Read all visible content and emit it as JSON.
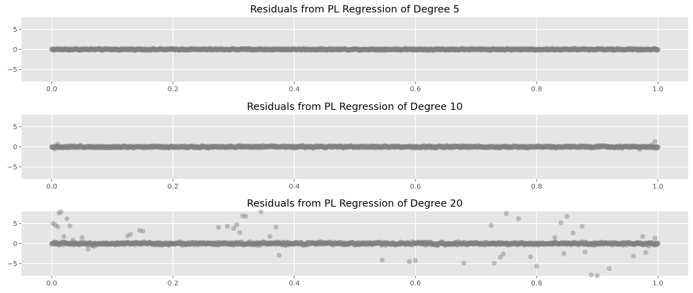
{
  "figure": {
    "background": "#ffffff",
    "axes_background": "#e5e5e5",
    "grid_color": "#ffffff",
    "tick_color": "#555555",
    "marker_color": "#808080"
  },
  "chart_data": [
    {
      "type": "scatter",
      "title": "Residuals from PL Regression of Degree 5",
      "xlabel": "",
      "ylabel": "",
      "xlim": [
        -0.05,
        1.05
      ],
      "ylim": [
        -8,
        8
      ],
      "xticks": [
        "0.0",
        "0.2",
        "0.4",
        "0.6",
        "0.8",
        "1.0"
      ],
      "yticks": [
        "5",
        "0",
        "−5"
      ],
      "xtick_values": [
        0,
        0.2,
        0.4,
        0.6,
        0.8,
        1.0
      ],
      "ytick_values": [
        5,
        0,
        -5
      ],
      "grid": true,
      "band": {
        "x_range": [
          0,
          1
        ],
        "y_spread": 0.25,
        "count": 700
      },
      "outliers": {
        "x": [],
        "y": []
      }
    },
    {
      "type": "scatter",
      "title": "Residuals from PL Regression of Degree 10",
      "xlabel": "",
      "ylabel": "",
      "xlim": [
        -0.05,
        1.05
      ],
      "ylim": [
        -8,
        8
      ],
      "xticks": [
        "0.0",
        "0.2",
        "0.4",
        "0.6",
        "0.8",
        "1.0"
      ],
      "yticks": [
        "5",
        "0",
        "−5"
      ],
      "xtick_values": [
        0,
        0.2,
        0.4,
        0.6,
        0.8,
        1.0
      ],
      "ytick_values": [
        5,
        0,
        -5
      ],
      "grid": true,
      "band": {
        "x_range": [
          0,
          1
        ],
        "y_spread": 0.3,
        "count": 700
      },
      "outliers": {
        "x": [
          0.01,
          0.97,
          0.995,
          0.998,
          0.005,
          0.99
        ],
        "y": [
          0.7,
          -0.6,
          1.3,
          -0.4,
          -0.5,
          0.5
        ]
      }
    },
    {
      "type": "scatter",
      "title": "Residuals from PL Regression of Degree 20",
      "xlabel": "",
      "ylabel": "",
      "xlim": [
        -0.05,
        1.05
      ],
      "ylim": [
        -8,
        8
      ],
      "xticks": [
        "0.0",
        "0.2",
        "0.4",
        "0.6",
        "0.8",
        "1.0"
      ],
      "yticks": [
        "5",
        "0",
        "−5"
      ],
      "xtick_values": [
        0,
        0.2,
        0.4,
        0.6,
        0.8,
        1.0
      ],
      "ytick_values": [
        5,
        0,
        -5
      ],
      "grid": true,
      "band": {
        "x_range": [
          0,
          1
        ],
        "y_spread": 0.45,
        "count": 700
      },
      "outliers": {
        "x": [
          0.002,
          0.006,
          0.012,
          0.01,
          0.015,
          0.02,
          0.025,
          0.03,
          0.035,
          0.05,
          0.06,
          0.07,
          0.125,
          0.13,
          0.145,
          0.15,
          0.275,
          0.29,
          0.3,
          0.305,
          0.31,
          0.315,
          0.345,
          0.36,
          0.375,
          0.37,
          0.32,
          0.545,
          0.59,
          0.6,
          0.68,
          0.725,
          0.73,
          0.74,
          0.75,
          0.745,
          0.77,
          0.79,
          0.8,
          0.83,
          0.84,
          0.845,
          0.85,
          0.86,
          0.875,
          0.88,
          0.89,
          0.9,
          0.92,
          0.96,
          0.975,
          0.98,
          0.995,
          0.985
        ],
        "y": [
          5.0,
          4.6,
          7.6,
          4.2,
          7.9,
          1.8,
          6.2,
          4.4,
          0.9,
          1.5,
          -1.4,
          -0.7,
          1.9,
          2.3,
          3.3,
          3.1,
          4.0,
          4.3,
          3.8,
          4.7,
          2.7,
          6.9,
          7.9,
          1.8,
          -2.9,
          4.1,
          6.8,
          -4.1,
          -4.5,
          -4.2,
          -4.8,
          4.5,
          -4.9,
          -3.4,
          7.5,
          -2.6,
          6.2,
          -3.3,
          -5.6,
          1.5,
          5.2,
          -2.5,
          6.8,
          2.6,
          4.3,
          -2.1,
          -7.8,
          -8.0,
          -6.2,
          -3.1,
          1.8,
          -2.2,
          1.3,
          -0.6
        ]
      }
    }
  ]
}
